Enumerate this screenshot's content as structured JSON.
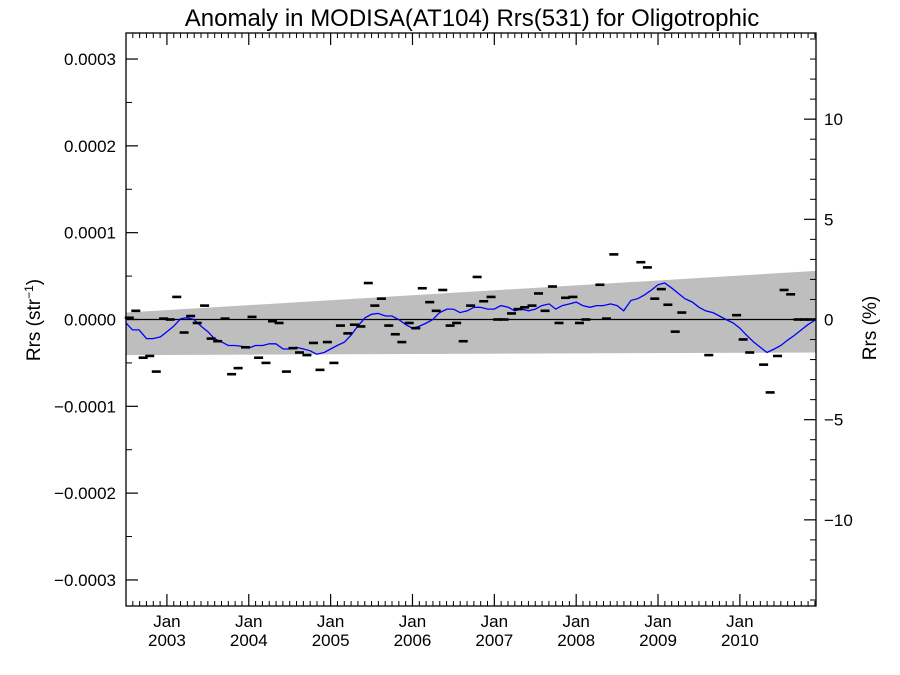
{
  "chart_data": {
    "type": "line",
    "title": "Anomaly in MODISA(AT104) Rrs(531) for Oligotrophic",
    "ylabel_left": "Rrs (str",
    "ylabel_left_sup": "−1",
    "ylabel_left_end": ")",
    "ylabel_right": "Rrs (%)",
    "xlim": [
      2002.5,
      2010.93
    ],
    "ylim": [
      -0.00033,
      0.00033
    ],
    "y2lim": [
      -14.3,
      14.3
    ],
    "xticks": [
      {
        "x": 2003.0,
        "line1": "Jan",
        "line2": "2003"
      },
      {
        "x": 2004.0,
        "line1": "Jan",
        "line2": "2004"
      },
      {
        "x": 2005.0,
        "line1": "Jan",
        "line2": "2005"
      },
      {
        "x": 2006.0,
        "line1": "Jan",
        "line2": "2006"
      },
      {
        "x": 2007.0,
        "line1": "Jan",
        "line2": "2007"
      },
      {
        "x": 2008.0,
        "line1": "Jan",
        "line2": "2008"
      },
      {
        "x": 2009.0,
        "line1": "Jan",
        "line2": "2009"
      },
      {
        "x": 2010.0,
        "line1": "Jan",
        "line2": "2010"
      }
    ],
    "yticks_left": [
      {
        "v": 0.0003,
        "label": "0.0003"
      },
      {
        "v": 0.0002,
        "label": "0.0002"
      },
      {
        "v": 0.0001,
        "label": "0.0001"
      },
      {
        "v": 0.0,
        "label": "0.0000"
      },
      {
        "v": -0.0001,
        "label": "−0.0001"
      },
      {
        "v": -0.0002,
        "label": "−0.0002"
      },
      {
        "v": -0.0003,
        "label": "−0.0003"
      }
    ],
    "yticks_right": [
      {
        "v": 10,
        "label": "10"
      },
      {
        "v": 5,
        "label": "5"
      },
      {
        "v": 0,
        "label": "0"
      },
      {
        "v": -5,
        "label": "−5"
      },
      {
        "v": -10,
        "label": "−10"
      }
    ],
    "band": {
      "color": "#bebebe",
      "x": [
        2002.5,
        2010.93
      ],
      "upper": [
        8e-06,
        5.6e-05
      ],
      "lower": [
        -4.1e-05,
        -3.8e-05
      ]
    },
    "zero_line": 0.0,
    "series": [
      {
        "kind": "points",
        "color": "#000000",
        "x": [
          2002.54,
          2002.62,
          2002.71,
          2002.79,
          2002.87,
          2002.96,
          2003.04,
          2003.12,
          2003.21,
          2003.29,
          2003.37,
          2003.46,
          2003.54,
          2003.62,
          2003.71,
          2003.79,
          2003.87,
          2003.96,
          2004.04,
          2004.12,
          2004.21,
          2004.29,
          2004.37,
          2004.46,
          2004.54,
          2004.62,
          2004.71,
          2004.79,
          2004.87,
          2004.96,
          2005.04,
          2005.12,
          2005.21,
          2005.29,
          2005.37,
          2005.46,
          2005.54,
          2005.62,
          2005.71,
          2005.79,
          2005.87,
          2005.96,
          2006.04,
          2006.12,
          2006.21,
          2006.29,
          2006.37,
          2006.46,
          2006.54,
          2006.62,
          2006.71,
          2006.79,
          2006.87,
          2006.96,
          2007.04,
          2007.12,
          2007.21,
          2007.29,
          2007.37,
          2007.46,
          2007.54,
          2007.62,
          2007.71,
          2007.79,
          2007.87,
          2007.96,
          2008.04,
          2008.12,
          2008.29,
          2008.37,
          2008.46,
          2008.79,
          2008.87,
          2008.96,
          2009.04,
          2009.12,
          2009.21,
          2009.29,
          2009.62,
          2009.96,
          2010.04,
          2010.12,
          2010.29,
          2010.37,
          2010.46,
          2010.54,
          2010.62,
          2010.71,
          2010.79,
          2010.87
        ],
        "y": [
          2e-06,
          1e-05,
          -4.4e-05,
          -4.2e-05,
          -6e-05,
          1e-06,
          0.0,
          2.6e-05,
          -1.5e-05,
          4e-06,
          -4e-06,
          1.6e-05,
          -2.2e-05,
          -2.5e-05,
          1e-06,
          -6.3e-05,
          -5.6e-05,
          -3.2e-05,
          3e-06,
          -4.4e-05,
          -5e-05,
          -2e-06,
          -4e-06,
          -6e-05,
          -3.3e-05,
          -3.8e-05,
          -4.1e-05,
          -2.7e-05,
          -5.8e-05,
          -2.6e-05,
          -5e-05,
          -7e-06,
          -1.6e-05,
          -6e-06,
          -8e-06,
          4.2e-05,
          1.6e-05,
          2.4e-05,
          -7e-06,
          -1.7e-05,
          -2.6e-05,
          -4e-06,
          -1e-05,
          3.6e-05,
          2e-05,
          1e-05,
          3.4e-05,
          -7e-06,
          -4e-06,
          -2.5e-05,
          1.6e-05,
          4.9e-05,
          2.1e-05,
          2.6e-05,
          0.0,
          0.0,
          7e-06,
          1.2e-05,
          1.4e-05,
          1.6e-05,
          3e-05,
          1e-05,
          3.8e-05,
          -4e-06,
          2.5e-05,
          2.6e-05,
          -4e-06,
          0.0,
          4e-05,
          1e-06,
          7.5e-05,
          6.6e-05,
          6e-05,
          2.4e-05,
          3.5e-05,
          1.7e-05,
          -1.4e-05,
          8e-06,
          -4.1e-05,
          5e-06,
          -2.3e-05,
          -3.8e-05,
          -5.2e-05,
          -8.4e-05,
          -4.2e-05,
          3.4e-05,
          2.9e-05,
          0.0,
          0.0,
          0.0
        ],
        "x_dash": [],
        "y_dash": []
      },
      {
        "kind": "line",
        "color": "#0000ff",
        "x": [
          2002.5,
          2002.58,
          2002.66,
          2002.75,
          2002.83,
          2002.92,
          2003.0,
          2003.08,
          2003.17,
          2003.25,
          2003.33,
          2003.42,
          2003.5,
          2003.58,
          2003.67,
          2003.75,
          2003.83,
          2003.92,
          2004.0,
          2004.08,
          2004.17,
          2004.25,
          2004.33,
          2004.42,
          2004.5,
          2004.58,
          2004.67,
          2004.75,
          2004.83,
          2004.92,
          2005.0,
          2005.08,
          2005.17,
          2005.25,
          2005.33,
          2005.42,
          2005.5,
          2005.58,
          2005.67,
          2005.75,
          2005.83,
          2005.92,
          2006.0,
          2006.08,
          2006.17,
          2006.25,
          2006.33,
          2006.42,
          2006.5,
          2006.58,
          2006.67,
          2006.75,
          2006.83,
          2006.92,
          2007.0,
          2007.08,
          2007.17,
          2007.25,
          2007.33,
          2007.42,
          2007.5,
          2007.58,
          2007.67,
          2007.75,
          2007.83,
          2007.92,
          2008.0,
          2008.08,
          2008.17,
          2008.25,
          2008.33,
          2008.42,
          2008.5,
          2008.58,
          2008.67,
          2008.75,
          2008.83,
          2008.92,
          2009.0,
          2009.08,
          2009.17,
          2009.25,
          2009.33,
          2009.42,
          2009.5,
          2009.58,
          2009.67,
          2009.75,
          2009.83,
          2009.92,
          2010.0,
          2010.08,
          2010.17,
          2010.25,
          2010.33,
          2010.42,
          2010.5,
          2010.58,
          2010.67,
          2010.75,
          2010.83,
          2010.93
        ],
        "y": [
          -4e-06,
          -1.2e-05,
          -1.2e-05,
          -2.2e-05,
          -2.2e-05,
          -2e-05,
          -1.4e-05,
          -8e-06,
          1e-06,
          2e-06,
          0.0,
          -8e-06,
          -1.4e-05,
          -2.2e-05,
          -2.6e-05,
          -3e-05,
          -3e-05,
          -3.1e-05,
          -3.3e-05,
          -3e-05,
          -3e-05,
          -2.8e-05,
          -2.8e-05,
          -3.4e-05,
          -3.4e-05,
          -3.2e-05,
          -3.4e-05,
          -3.6e-05,
          -4e-05,
          -3.8e-05,
          -3.4e-05,
          -3e-05,
          -2.6e-05,
          -1.8e-05,
          -8e-06,
          2e-06,
          6e-06,
          7e-06,
          4e-06,
          4e-06,
          0.0,
          -6e-06,
          -1e-05,
          -8e-06,
          -4e-06,
          0.0,
          8e-06,
          1.2e-05,
          1.2e-05,
          8e-06,
          1e-05,
          1.4e-05,
          1.4e-05,
          1.2e-05,
          1.2e-05,
          1.6e-05,
          1.4e-05,
          1e-05,
          1.2e-05,
          1e-05,
          1.2e-05,
          1.6e-05,
          1.8e-05,
          1.2e-05,
          1.6e-05,
          1.8e-05,
          2e-05,
          1.6e-05,
          1.4e-05,
          1.6e-05,
          1.6e-05,
          1.8e-05,
          1.6e-05,
          1e-05,
          2.2e-05,
          2.4e-05,
          2.8e-05,
          3.4e-05,
          4e-05,
          4.2e-05,
          3.6e-05,
          3e-05,
          2.4e-05,
          2e-05,
          1.4e-05,
          1e-05,
          8e-06,
          4e-06,
          0.0,
          -4e-06,
          -1e-05,
          -1.8e-05,
          -2.6e-05,
          -3.2e-05,
          -3.8e-05,
          -3.4e-05,
          -3e-05,
          -2.4e-05,
          -1.8e-05,
          -1.2e-05,
          -6e-06,
          0.0
        ]
      }
    ]
  }
}
